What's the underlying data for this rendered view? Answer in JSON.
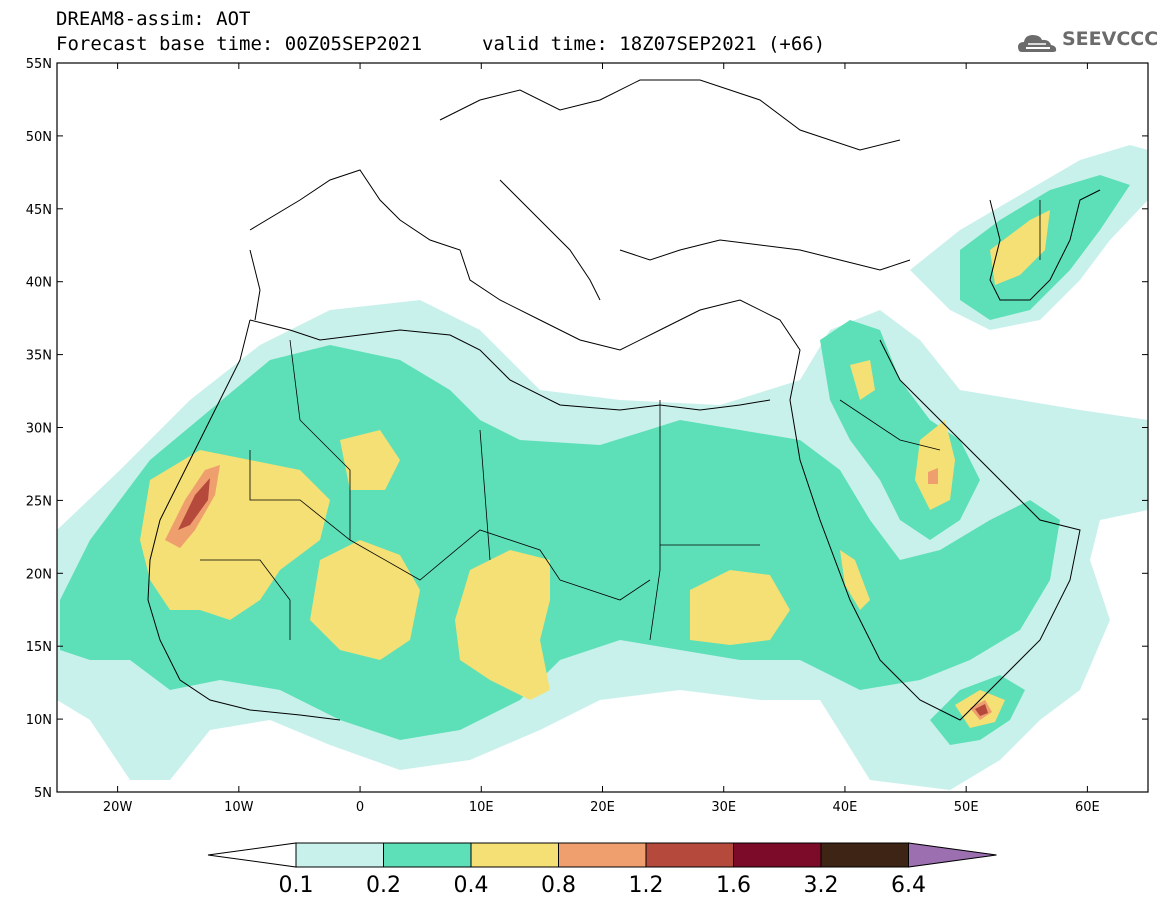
{
  "title": {
    "line1": "DREAM8-assim: AOT",
    "line2": "Forecast base time: 00Z05SEP2021",
    "valid": "valid time: 18Z07SEP2021 (+66)"
  },
  "logo": {
    "text": "SEEVCCC",
    "icon": "cloud-icon"
  },
  "map": {
    "lon_range": [
      -25,
      65
    ],
    "lat_range": [
      5,
      55
    ],
    "lat_labels": [
      "55N",
      "50N",
      "45N",
      "40N",
      "35N",
      "30N",
      "25N",
      "20N",
      "15N",
      "10N",
      "5N"
    ],
    "lon_labels": [
      "20W",
      "10W",
      "0",
      "10E",
      "20E",
      "30E",
      "40E",
      "50E",
      "60E"
    ]
  },
  "colorbar": {
    "labels": [
      "0.1",
      "0.2",
      "0.4",
      "0.8",
      "1.2",
      "1.6",
      "3.2",
      "6.4"
    ],
    "colors": [
      "#c9f1ec",
      "#5de0b7",
      "#f4e074",
      "#ef9e6e",
      "#b54a3c",
      "#7b0b28",
      "#3d2414",
      "#9b6fb0"
    ],
    "low_color": "#ffffff"
  }
}
